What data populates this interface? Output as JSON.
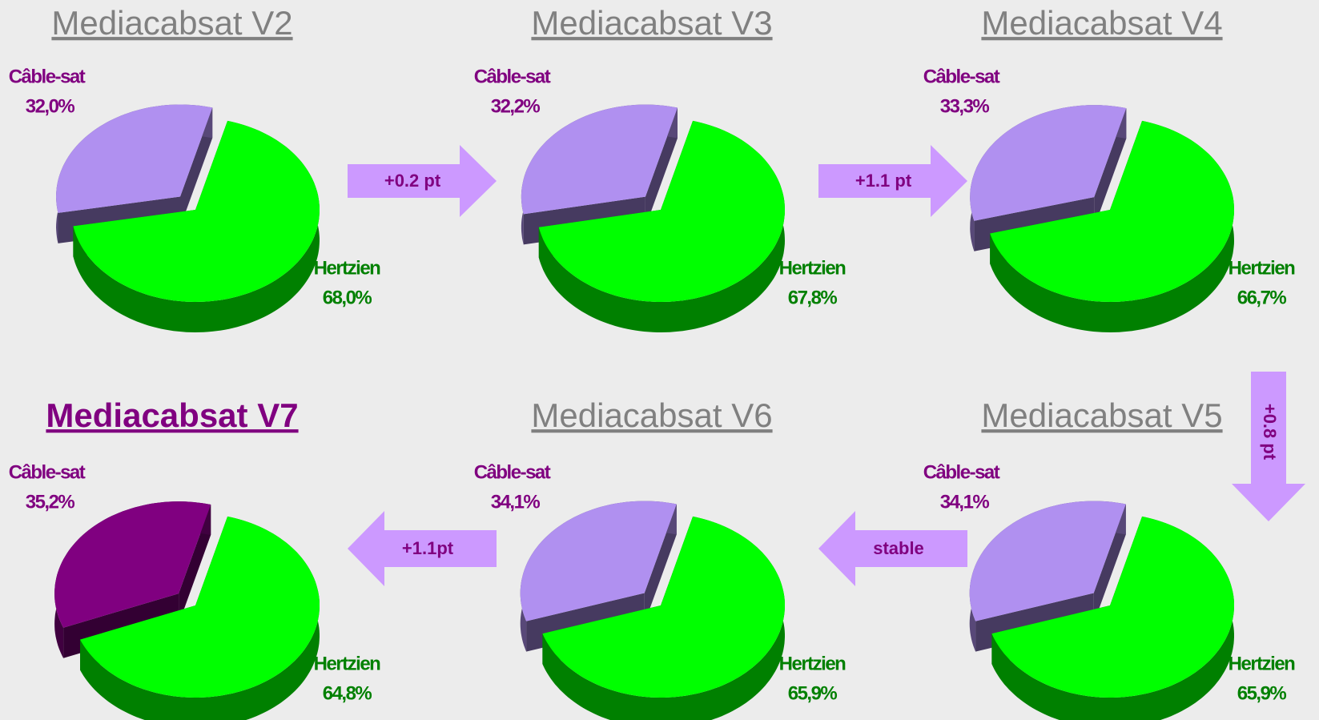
{
  "chart_data": [
    {
      "type": "pie",
      "title": "Mediacabsat V2",
      "categories": [
        "Câble-sat",
        "Hertzien"
      ],
      "values": [
        32.0,
        68.0
      ],
      "value_labels": [
        "32,0%",
        "68,0%"
      ],
      "colors": [
        "#b090f0",
        "#00ff00"
      ]
    },
    {
      "type": "pie",
      "title": "Mediacabsat V3",
      "categories": [
        "Câble-sat",
        "Hertzien"
      ],
      "values": [
        32.2,
        67.8
      ],
      "value_labels": [
        "32,2%",
        "67,8%"
      ],
      "colors": [
        "#b090f0",
        "#00ff00"
      ]
    },
    {
      "type": "pie",
      "title": "Mediacabsat V4",
      "categories": [
        "Câble-sat",
        "Hertzien"
      ],
      "values": [
        33.3,
        66.7
      ],
      "value_labels": [
        "33,3%",
        "66,7%"
      ],
      "colors": [
        "#b090f0",
        "#00ff00"
      ]
    },
    {
      "type": "pie",
      "title": "Mediacabsat V5",
      "categories": [
        "Câble-sat",
        "Hertzien"
      ],
      "values": [
        34.1,
        65.9
      ],
      "value_labels": [
        "34,1%",
        "65,9%"
      ],
      "colors": [
        "#b090f0",
        "#00ff00"
      ]
    },
    {
      "type": "pie",
      "title": "Mediacabsat V6",
      "categories": [
        "Câble-sat",
        "Hertzien"
      ],
      "values": [
        34.1,
        65.9
      ],
      "value_labels": [
        "34,1%",
        "65,9%"
      ],
      "colors": [
        "#b090f0",
        "#00ff00"
      ]
    },
    {
      "type": "pie",
      "title": "Mediacabsat V7",
      "categories": [
        "Câble-sat",
        "Hertzien"
      ],
      "values": [
        35.2,
        64.8
      ],
      "value_labels": [
        "35,2%",
        "64,8%"
      ],
      "colors": [
        "#800080",
        "#00ff00"
      ],
      "highlight": true
    }
  ],
  "arrows": [
    "+0.2 pt",
    "+1.1 pt",
    "+0.8 pt",
    "stable",
    "+1.1pt"
  ]
}
